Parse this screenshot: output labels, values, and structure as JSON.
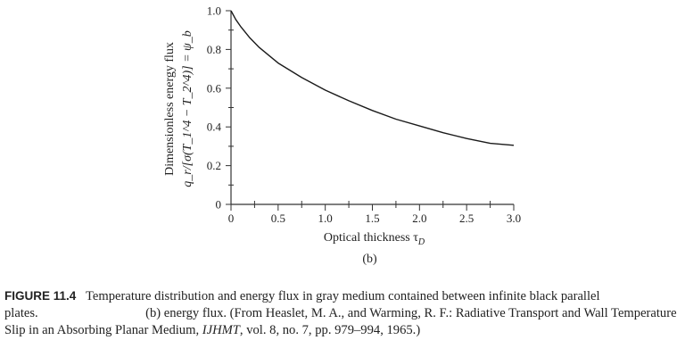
{
  "chart_data": {
    "type": "line",
    "xlabel": "Optical thickness τ",
    "xlabel_sub": "D",
    "ylabel_line1": "Dimensionless energy flux",
    "ylabel_line2": "q_r/[σ(T_1^4 − T_2^4)] = ψ_b",
    "panel_label": "(b)",
    "xlim": [
      0,
      3.0
    ],
    "ylim": [
      0,
      1.0
    ],
    "x_ticks": [
      0,
      0.5,
      1.0,
      1.5,
      2.0,
      2.5,
      3.0
    ],
    "x_tick_labels": [
      "0",
      "0.5",
      "1.0",
      "1.5",
      "2.0",
      "2.5",
      "3.0"
    ],
    "y_ticks": [
      0,
      0.2,
      0.4,
      0.6,
      0.8,
      1.0
    ],
    "y_tick_labels": [
      "0",
      "0.2",
      "0.4",
      "0.6",
      "0.8",
      "1.0"
    ],
    "grid": false,
    "series": [
      {
        "color": "#1a1a1a",
        "x": [
          0,
          0.05,
          0.1,
          0.2,
          0.3,
          0.4,
          0.5,
          0.75,
          1.0,
          1.25,
          1.5,
          1.75,
          2.0,
          2.25,
          2.5,
          2.75,
          3.0
        ],
        "y": [
          1.0,
          0.955,
          0.92,
          0.86,
          0.81,
          0.77,
          0.73,
          0.655,
          0.59,
          0.535,
          0.485,
          0.44,
          0.405,
          0.37,
          0.34,
          0.315,
          0.305
        ]
      }
    ]
  },
  "caption": {
    "figure_label": "FIGURE 11.4",
    "part1": "Temperature distribution and energy flux in gray medium contained between infinite black parallel plates.",
    "part2": "(b) energy flux. (From Heaslet, M. A., and Warming, R. F.: Radiative Transport and Wall Temperature Slip in an Absorbing Planar Medium,",
    "journal": "IJHMT",
    "part3": ", vol. 8, no. 7, pp. 979–994, 1965.)"
  }
}
